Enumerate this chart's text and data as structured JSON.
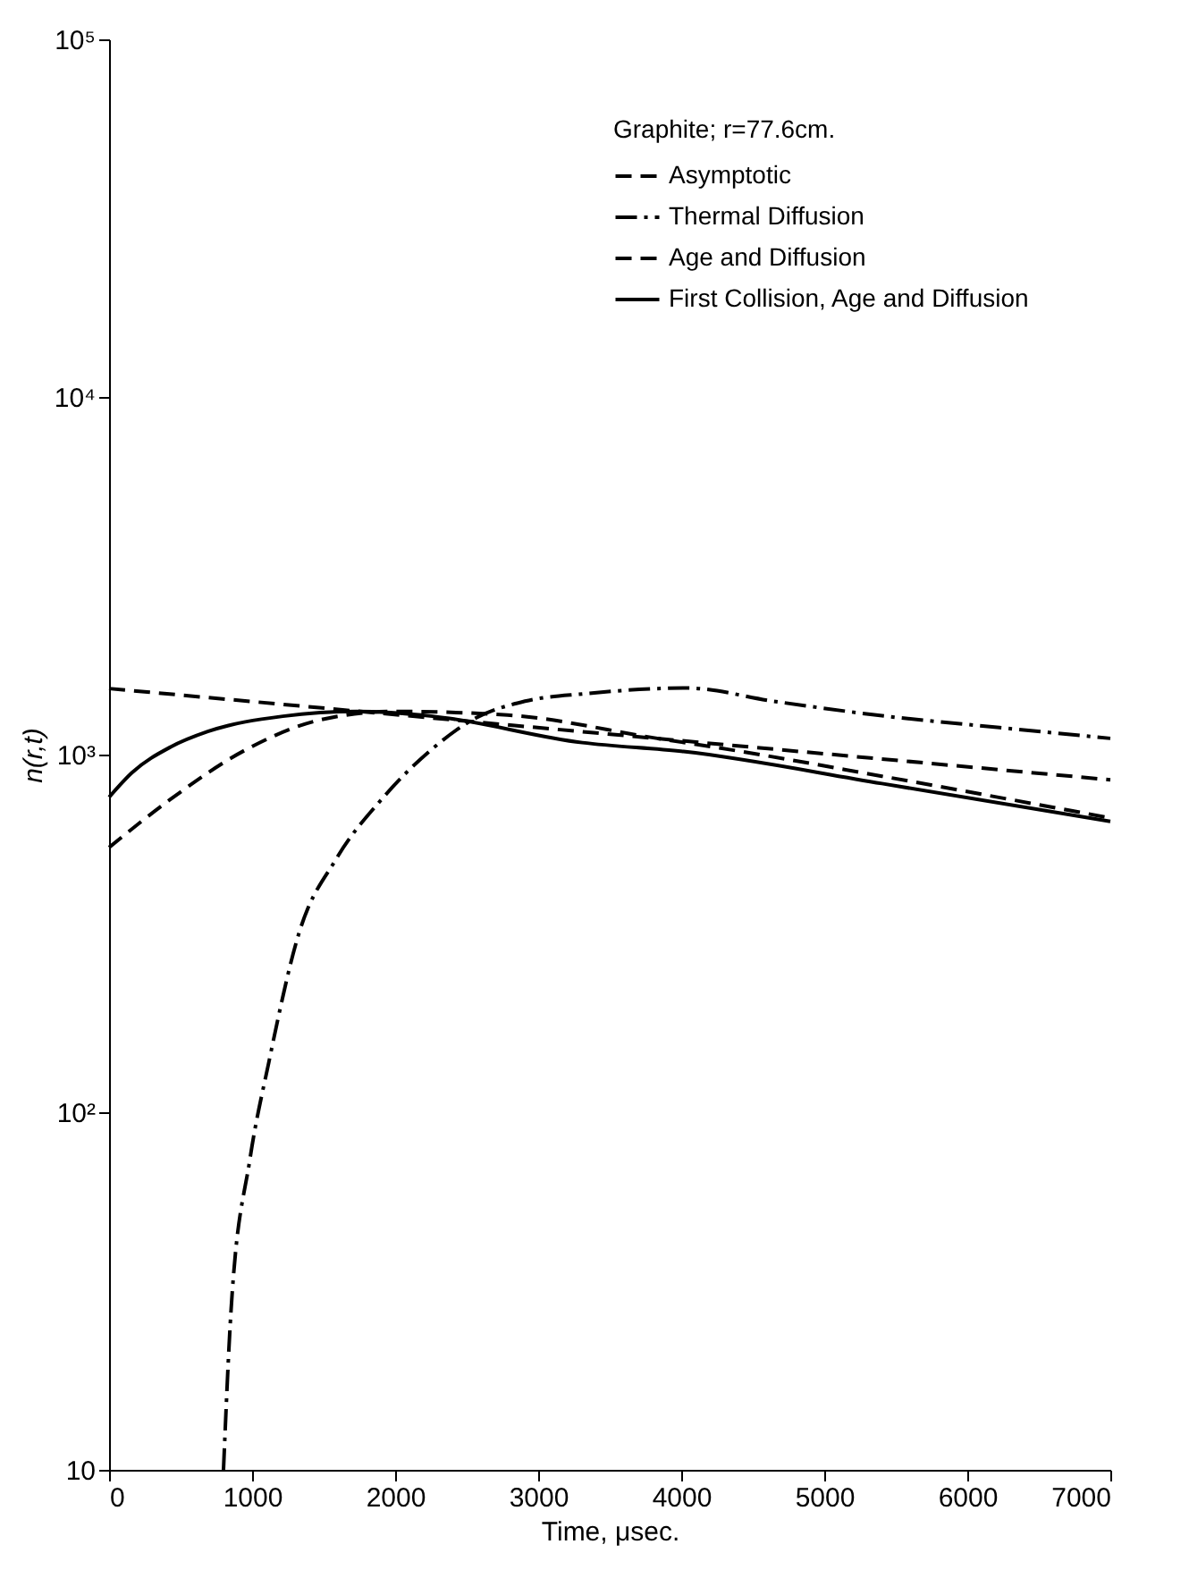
{
  "chart_data": {
    "type": "line",
    "xlabel": "Time, μsec.",
    "ylabel": "n(r,t)",
    "legend_title": "Graphite; r=77.6cm.",
    "legend": "top right",
    "grid": false,
    "log": "y",
    "xlim": [
      0,
      7000
    ],
    "xticks": [
      0,
      1000,
      2000,
      3000,
      4000,
      5000,
      6000,
      7000
    ],
    "ylim": [
      10,
      100000
    ],
    "yticks": [
      10,
      {
        "value": 100,
        "label": "10²"
      },
      {
        "value": 1000,
        "label": "10³"
      },
      {
        "value": 10000,
        "label": "10⁴"
      },
      {
        "value": 100000,
        "label": "10⁵"
      }
    ],
    "series": [
      {
        "name": "Asymptotic",
        "color": "#000000",
        "line_style": "dashed",
        "x": [
          0,
          7000
        ],
        "values": [
          1530,
          850
        ]
      },
      {
        "name": "Thermal Diffusion",
        "color": "#000000",
        "line_style": "dashdot",
        "x": [
          800,
          853,
          985,
          1117,
          1327,
          1591,
          1907,
          2275,
          2539,
          2908,
          3329,
          4039,
          4645,
          5435,
          6225,
          7000
        ],
        "values": [
          10,
          28,
          74,
          138,
          316,
          513,
          751,
          1050,
          1250,
          1410,
          1480,
          1535,
          1410,
          1280,
          1190,
          1110
        ]
      },
      {
        "name": "Age and Diffusion",
        "color": "#000000",
        "line_style": "dashed",
        "x": [
          0,
          430,
          953,
          1476,
          2000,
          2785,
          3833,
          4356,
          5403,
          7000
        ],
        "values": [
          550,
          750,
          1030,
          1250,
          1320,
          1290,
          1110,
          1030,
          870,
          665
        ]
      },
      {
        "name": "First Collision, Age and Diffusion",
        "color": "#000000",
        "line_style": "solid",
        "x": [
          0,
          160,
          430,
          690,
          1215,
          1738,
          2262,
          3309,
          4016,
          5403,
          7000
        ],
        "values": [
          760,
          890,
          1050,
          1160,
          1280,
          1320,
          1280,
          1080,
          1020,
          830,
          650
        ]
      }
    ]
  }
}
